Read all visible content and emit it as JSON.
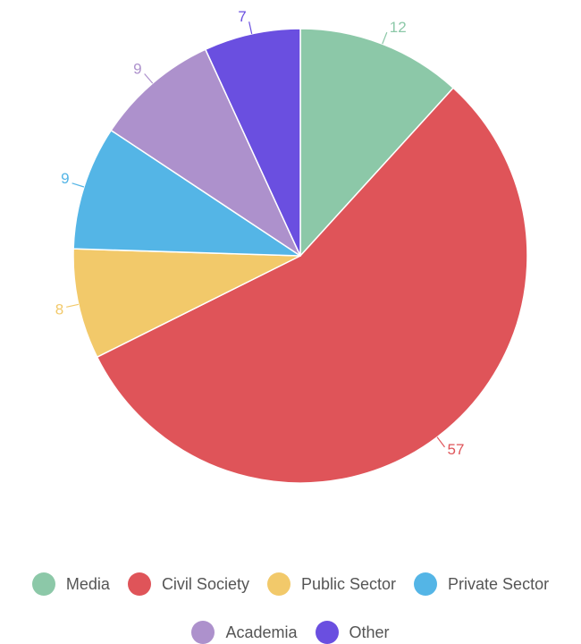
{
  "chart_data": {
    "type": "pie",
    "title": "",
    "slices": [
      {
        "label": "Media",
        "value": 12,
        "color": "#8cc8a8"
      },
      {
        "label": "Civil Society",
        "value": 57,
        "color": "#df5459"
      },
      {
        "label": "Public Sector",
        "value": 8,
        "color": "#f2c96a"
      },
      {
        "label": "Private Sector",
        "value": 9,
        "color": "#54b5e6"
      },
      {
        "label": "Academia",
        "value": 9,
        "color": "#ad91cc"
      },
      {
        "label": "Other",
        "value": 7,
        "color": "#6a4fe0"
      }
    ],
    "data_labels": [
      "12",
      "57",
      "8",
      "9",
      "9",
      "7"
    ],
    "legend_placement": "bottom"
  },
  "legend": {
    "rows": [
      [
        "Media",
        "Civil Society",
        "Public Sector",
        "Private Sector"
      ],
      [
        "Academia",
        "Other"
      ]
    ]
  }
}
